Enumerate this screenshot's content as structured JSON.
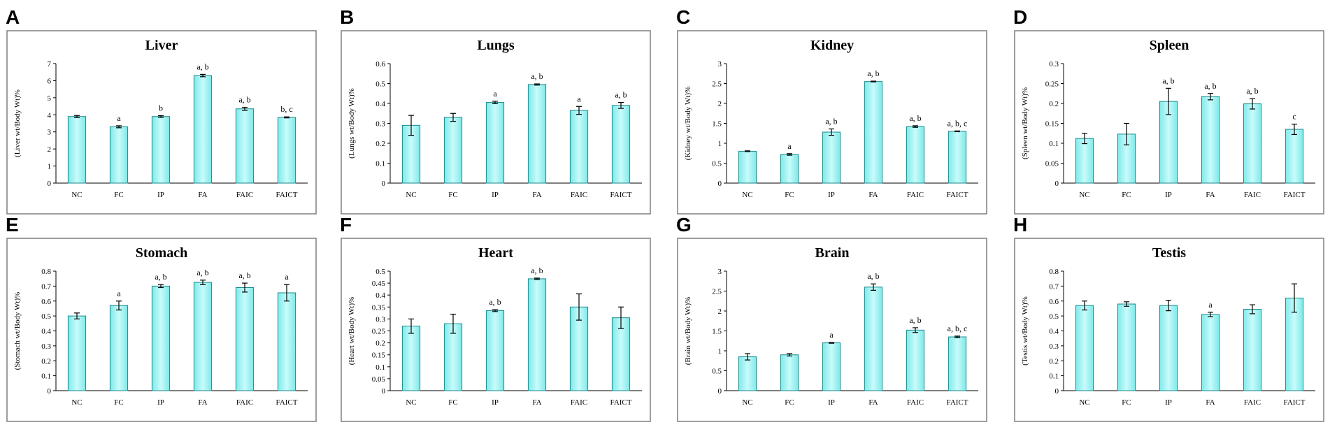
{
  "chart_data": [
    {
      "panel": "A",
      "type": "bar",
      "title": "Liver",
      "ylabel": "(Liver wt/Body Wt)%",
      "categories": [
        "NC",
        "FC",
        "IP",
        "FA",
        "FAIC",
        "FAICT"
      ],
      "values": [
        3.9,
        3.3,
        3.9,
        6.3,
        4.35,
        3.85
      ],
      "errors": [
        0.06,
        0.06,
        0.05,
        0.07,
        0.09,
        0.03
      ],
      "annotations": [
        "",
        "a",
        "b",
        "a, b",
        "a, b",
        "b, c"
      ],
      "ylim": [
        0,
        7
      ],
      "yticks": [
        "0",
        "1",
        "2",
        "3",
        "4",
        "5",
        "6",
        "7"
      ]
    },
    {
      "panel": "B",
      "type": "bar",
      "title": "Lungs",
      "ylabel": "(Lungs wt/Body Wt)%",
      "categories": [
        "NC",
        "FC",
        "IP",
        "FA",
        "FAIC",
        "FAICT"
      ],
      "values": [
        0.29,
        0.33,
        0.405,
        0.495,
        0.365,
        0.39
      ],
      "errors": [
        0.05,
        0.02,
        0.006,
        0.003,
        0.02,
        0.015
      ],
      "annotations": [
        "",
        "",
        "a",
        "a, b",
        "a",
        "a, b"
      ],
      "ylim": [
        0,
        0.6
      ],
      "yticks": [
        "0",
        "0.1",
        "0.2",
        "0.3",
        "0.4",
        "0.5",
        "0.6"
      ]
    },
    {
      "panel": "C",
      "type": "bar",
      "title": "Kidney",
      "ylabel": "(Kidney wt/Body Wt)%",
      "categories": [
        "NC",
        "FC",
        "IP",
        "FA",
        "FAIC",
        "FAICT"
      ],
      "values": [
        0.8,
        0.72,
        1.28,
        2.55,
        1.42,
        1.3
      ],
      "errors": [
        0.01,
        0.02,
        0.08,
        0.01,
        0.02,
        0.01
      ],
      "annotations": [
        "",
        "a",
        "a, b",
        "a, b",
        "a, b",
        "a, b, c"
      ],
      "ylim": [
        0,
        3
      ],
      "yticks": [
        "0",
        "0.5",
        "1",
        "1.5",
        "2",
        "2.5",
        "3"
      ]
    },
    {
      "panel": "D",
      "type": "bar",
      "title": "Spleen",
      "ylabel": "(Spleen wt/Body Wt)%",
      "categories": [
        "NC",
        "FC",
        "IP",
        "FA",
        "FAIC",
        "FAICT"
      ],
      "values": [
        0.112,
        0.123,
        0.205,
        0.217,
        0.199,
        0.135
      ],
      "errors": [
        0.013,
        0.027,
        0.033,
        0.008,
        0.013,
        0.013
      ],
      "annotations": [
        "",
        "",
        "a, b",
        "a, b",
        "a, b",
        "c"
      ],
      "ylim": [
        0,
        0.3
      ],
      "yticks": [
        "0",
        "0.05",
        "0.1",
        "0.15",
        "0.2",
        "0.25",
        "0.3"
      ]
    },
    {
      "panel": "E",
      "type": "bar",
      "title": "Stomach",
      "ylabel": "(Stomach wt/Body Wt)%",
      "categories": [
        "NC",
        "FC",
        "IP",
        "FA",
        "FAIC",
        "FAICT"
      ],
      "values": [
        0.5,
        0.57,
        0.7,
        0.725,
        0.69,
        0.655
      ],
      "errors": [
        0.02,
        0.03,
        0.01,
        0.015,
        0.03,
        0.055
      ],
      "annotations": [
        "",
        "a",
        "a, b",
        "a, b",
        "a, b",
        "a"
      ],
      "ylim": [
        0,
        0.8
      ],
      "yticks": [
        "0",
        "0.1",
        "0.2",
        "0.3",
        "0.4",
        "0.5",
        "0.6",
        "0.7",
        "0.8"
      ]
    },
    {
      "panel": "F",
      "type": "bar",
      "title": "Heart",
      "ylabel": "(Heart wt/Body Wt)%",
      "categories": [
        "NC",
        "FC",
        "IP",
        "FA",
        "FAIC",
        "FAICT"
      ],
      "values": [
        0.27,
        0.28,
        0.335,
        0.468,
        0.35,
        0.305
      ],
      "errors": [
        0.03,
        0.04,
        0.004,
        0.003,
        0.055,
        0.045
      ],
      "annotations": [
        "",
        "",
        "a, b",
        "a, b",
        "",
        ""
      ],
      "ylim": [
        0,
        0.5
      ],
      "yticks": [
        "0",
        "0.05",
        "0.1",
        "0.15",
        "0.2",
        "0.25",
        "0.3",
        "0.35",
        "0.4",
        "0.45",
        "0.5"
      ]
    },
    {
      "panel": "G",
      "type": "bar",
      "title": "Brain",
      "ylabel": "(Brain wt/Body Wt)%",
      "categories": [
        "NC",
        "FC",
        "IP",
        "FA",
        "FAIC",
        "FAICT"
      ],
      "values": [
        0.85,
        0.9,
        1.2,
        2.6,
        1.52,
        1.35
      ],
      "errors": [
        0.08,
        0.03,
        0.01,
        0.08,
        0.06,
        0.02
      ],
      "annotations": [
        "",
        "",
        "a",
        "a, b",
        "a, b",
        "a, b, c"
      ],
      "ylim": [
        0,
        3
      ],
      "yticks": [
        "0",
        "0.5",
        "1",
        "1.5",
        "2",
        "2.5",
        "3"
      ]
    },
    {
      "panel": "H",
      "type": "bar",
      "title": "Testis",
      "ylabel": "(Testis wt/Body Wt)%",
      "categories": [
        "NC",
        "FC",
        "IP",
        "FA",
        "FAIC",
        "FAICT"
      ],
      "values": [
        0.57,
        0.58,
        0.57,
        0.51,
        0.545,
        0.62
      ],
      "errors": [
        0.03,
        0.015,
        0.035,
        0.015,
        0.03,
        0.095
      ],
      "annotations": [
        "",
        "",
        "",
        "a",
        "",
        ""
      ],
      "ylim": [
        0,
        0.8
      ],
      "yticks": [
        "0",
        "0.1",
        "0.2",
        "0.3",
        "0.4",
        "0.5",
        "0.6",
        "0.7",
        "0.8"
      ]
    }
  ],
  "colors": {
    "bar_top": "#c9fbfb",
    "bar_bottom": "#7fe9e9",
    "bar_stroke": "#1a8a8a"
  }
}
